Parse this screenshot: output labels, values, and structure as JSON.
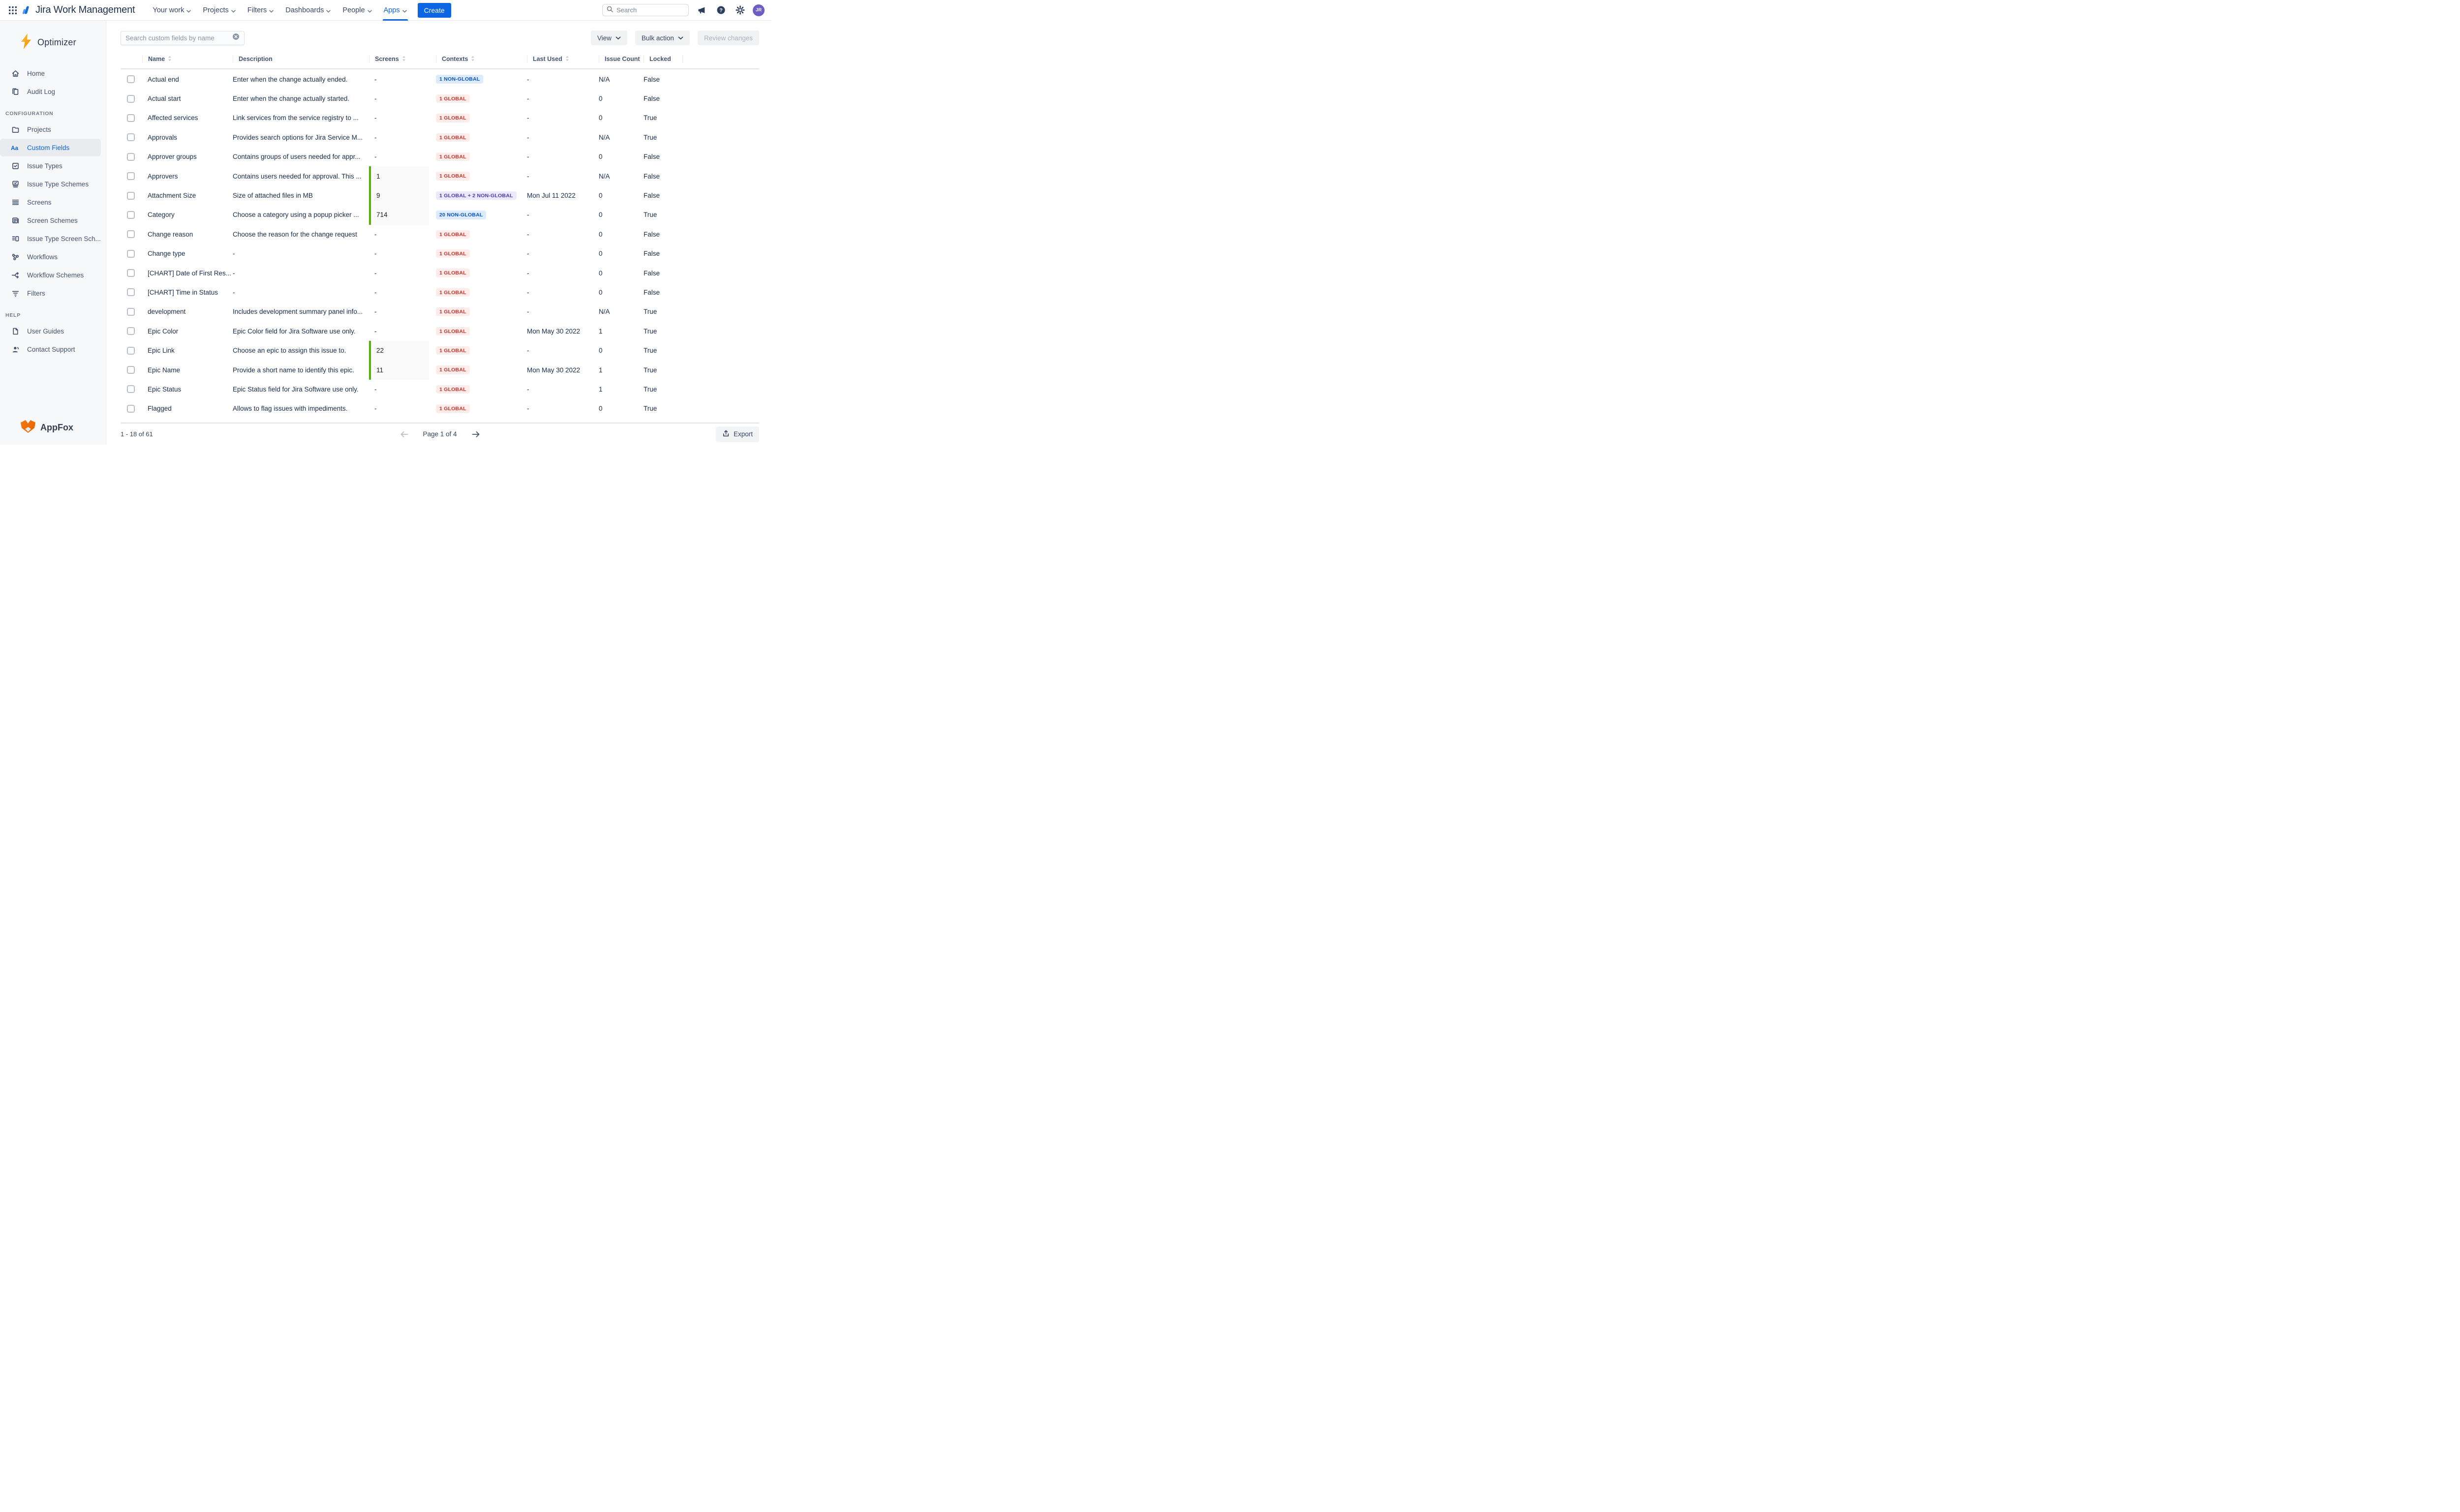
{
  "nav": {
    "title": "Jira Work Management",
    "menu": [
      {
        "label": "Your work",
        "active": false
      },
      {
        "label": "Projects",
        "active": false
      },
      {
        "label": "Filters",
        "active": false
      },
      {
        "label": "Dashboards",
        "active": false
      },
      {
        "label": "People",
        "active": false
      },
      {
        "label": "Apps",
        "active": true
      }
    ],
    "create_label": "Create",
    "search_placeholder": "Search",
    "avatar_initials": "JR"
  },
  "sidebar": {
    "app_name": "Optimizer",
    "items": [
      {
        "label": "Home",
        "icon": "home-icon"
      },
      {
        "label": "Audit Log",
        "icon": "audit-log-icon"
      },
      {
        "section": "CONFIGURATION"
      },
      {
        "label": "Projects",
        "icon": "folder-icon"
      },
      {
        "label": "Custom Fields",
        "icon": "custom-fields-icon",
        "active": true
      },
      {
        "label": "Issue Types",
        "icon": "issue-types-icon"
      },
      {
        "label": "Issue Type Schemes",
        "icon": "issue-type-schemes-icon"
      },
      {
        "label": "Screens",
        "icon": "screens-icon"
      },
      {
        "label": "Screen Schemes",
        "icon": "screen-schemes-icon"
      },
      {
        "label": "Issue Type Screen Sch...",
        "icon": "issue-type-screen-schemes-icon"
      },
      {
        "label": "Workflows",
        "icon": "workflows-icon"
      },
      {
        "label": "Workflow Schemes",
        "icon": "workflow-schemes-icon"
      },
      {
        "label": "Filters",
        "icon": "filters-icon"
      },
      {
        "section": "HELP"
      },
      {
        "label": "User Guides",
        "icon": "user-guides-icon"
      },
      {
        "label": "Contact Support",
        "icon": "contact-support-icon"
      }
    ],
    "footer_brand": "AppFox"
  },
  "toolbar": {
    "search_placeholder": "Search custom fields by name",
    "view_label": "View",
    "bulk_action_label": "Bulk action",
    "review_changes_label": "Review changes"
  },
  "table": {
    "columns": [
      {
        "label": "Name",
        "sortable": true
      },
      {
        "label": "Description",
        "sortable": false
      },
      {
        "label": "Screens",
        "sortable": true
      },
      {
        "label": "Contexts",
        "sortable": true
      },
      {
        "label": "Last Used",
        "sortable": true
      },
      {
        "label": "Issue Count",
        "sortable": false
      },
      {
        "label": "Locked",
        "sortable": false
      }
    ],
    "rows": [
      {
        "name": "Actual end",
        "description": "Enter when the change actually ended.",
        "screens": "-",
        "context": {
          "text": "1 NON-GLOBAL",
          "type": "blue"
        },
        "last_used": "-",
        "issue_count": "N/A",
        "locked": "False"
      },
      {
        "name": "Actual start",
        "description": "Enter when the change actually started.",
        "screens": "-",
        "context": {
          "text": "1 GLOBAL",
          "type": "red"
        },
        "last_used": "-",
        "issue_count": "0",
        "locked": "False"
      },
      {
        "name": "Affected services",
        "description": "Link services from the service registry to ...",
        "screens": "-",
        "context": {
          "text": "1 GLOBAL",
          "type": "red"
        },
        "last_used": "-",
        "issue_count": "0",
        "locked": "True"
      },
      {
        "name": "Approvals",
        "description": "Provides search options for Jira Service M...",
        "screens": "-",
        "context": {
          "text": "1 GLOBAL",
          "type": "red"
        },
        "last_used": "-",
        "issue_count": "N/A",
        "locked": "True"
      },
      {
        "name": "Approver groups",
        "description": "Contains groups of users needed for appr...",
        "screens": "-",
        "context": {
          "text": "1 GLOBAL",
          "type": "red"
        },
        "last_used": "-",
        "issue_count": "0",
        "locked": "False"
      },
      {
        "name": "Approvers",
        "description": "Contains users needed for approval. This ...",
        "screens": "1",
        "context": {
          "text": "1 GLOBAL",
          "type": "red"
        },
        "last_used": "-",
        "issue_count": "N/A",
        "locked": "False"
      },
      {
        "name": "Attachment Size",
        "description": "Size of attached files in MB",
        "screens": "9",
        "context": {
          "text": "1 GLOBAL + 2 NON-GLOBAL",
          "type": "purple"
        },
        "last_used": "Mon Jul 11 2022",
        "issue_count": "0",
        "locked": "False"
      },
      {
        "name": "Category",
        "description": "Choose a category using a popup picker ...",
        "screens": "714",
        "context": {
          "text": "20 NON-GLOBAL",
          "type": "blue"
        },
        "last_used": "-",
        "issue_count": "0",
        "locked": "True"
      },
      {
        "name": "Change reason",
        "description": "Choose the reason for the change request",
        "screens": "-",
        "context": {
          "text": "1 GLOBAL",
          "type": "red"
        },
        "last_used": "-",
        "issue_count": "0",
        "locked": "False"
      },
      {
        "name": "Change type",
        "description": "-",
        "screens": "-",
        "context": {
          "text": "1 GLOBAL",
          "type": "red"
        },
        "last_used": "-",
        "issue_count": "0",
        "locked": "False"
      },
      {
        "name": "[CHART] Date of First Res...",
        "description": "-",
        "screens": "-",
        "context": {
          "text": "1 GLOBAL",
          "type": "red"
        },
        "last_used": "-",
        "issue_count": "0",
        "locked": "False"
      },
      {
        "name": "[CHART] Time in Status",
        "description": "-",
        "screens": "-",
        "context": {
          "text": "1 GLOBAL",
          "type": "red"
        },
        "last_used": "-",
        "issue_count": "0",
        "locked": "False"
      },
      {
        "name": "development",
        "description": "Includes development summary panel info...",
        "screens": "-",
        "context": {
          "text": "1 GLOBAL",
          "type": "red"
        },
        "last_used": "-",
        "issue_count": "N/A",
        "locked": "True"
      },
      {
        "name": "Epic Color",
        "description": "Epic Color field for Jira Software use only.",
        "screens": "-",
        "context": {
          "text": "1 GLOBAL",
          "type": "red"
        },
        "last_used": "Mon May 30 2022",
        "issue_count": "1",
        "locked": "True"
      },
      {
        "name": "Epic Link",
        "description": "Choose an epic to assign this issue to.",
        "screens": "22",
        "context": {
          "text": "1 GLOBAL",
          "type": "red"
        },
        "last_used": "-",
        "issue_count": "0",
        "locked": "True"
      },
      {
        "name": "Epic Name",
        "description": "Provide a short name to identify this epic.",
        "screens": "11",
        "context": {
          "text": "1 GLOBAL",
          "type": "red"
        },
        "last_used": "Mon May 30 2022",
        "issue_count": "1",
        "locked": "True"
      },
      {
        "name": "Epic Status",
        "description": "Epic Status field for Jira Software use only.",
        "screens": "-",
        "context": {
          "text": "1 GLOBAL",
          "type": "red"
        },
        "last_used": "-",
        "issue_count": "1",
        "locked": "True"
      },
      {
        "name": "Flagged",
        "description": "Allows to flag issues with impediments.",
        "screens": "-",
        "context": {
          "text": "1 GLOBAL",
          "type": "red"
        },
        "last_used": "-",
        "issue_count": "0",
        "locked": "True"
      }
    ]
  },
  "footer": {
    "range_text": "1 - 18 of 61",
    "page_text": "Page 1 of 4",
    "export_label": "Export"
  },
  "colors": {
    "accent_blue": "#0c66e4",
    "badge_blue_text": "#0b53cc",
    "badge_blue_bg": "#ddebfe",
    "badge_red_text": "#c9372c",
    "badge_red_bg": "#ffeceb",
    "badge_purple_text": "#4f3bb0",
    "badge_purple_bg": "#ede8fd",
    "screens_green_bar": "#57ae09",
    "avatar_purple": "#6e5dc6",
    "optimizer_orange": "#f5a10a",
    "appfox_orange": "#f0750f"
  }
}
